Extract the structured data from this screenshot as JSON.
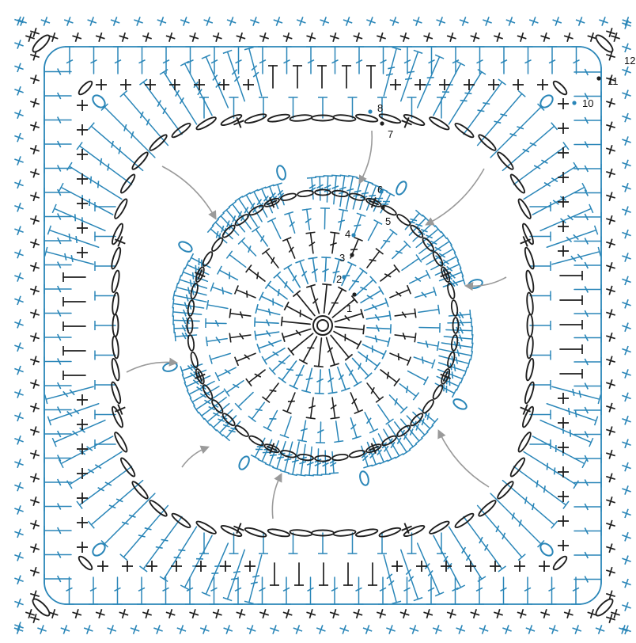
{
  "diagram": {
    "round_labels": [
      "1",
      "2",
      "3",
      "4",
      "5",
      "6",
      "7",
      "8",
      "10",
      "11",
      "12"
    ],
    "colors": {
      "black": "#1e1e1e",
      "blue": "#2a86b8",
      "grey": "#9a9a9a",
      "background": "#ffffff"
    },
    "center_ring": "magic-ring",
    "color_rounds": {
      "black": [
        "1",
        "3",
        "5",
        "7",
        "9",
        "11"
      ],
      "blue": [
        "2",
        "4",
        "6",
        "8",
        "10",
        "12"
      ]
    },
    "petals": 8
  }
}
